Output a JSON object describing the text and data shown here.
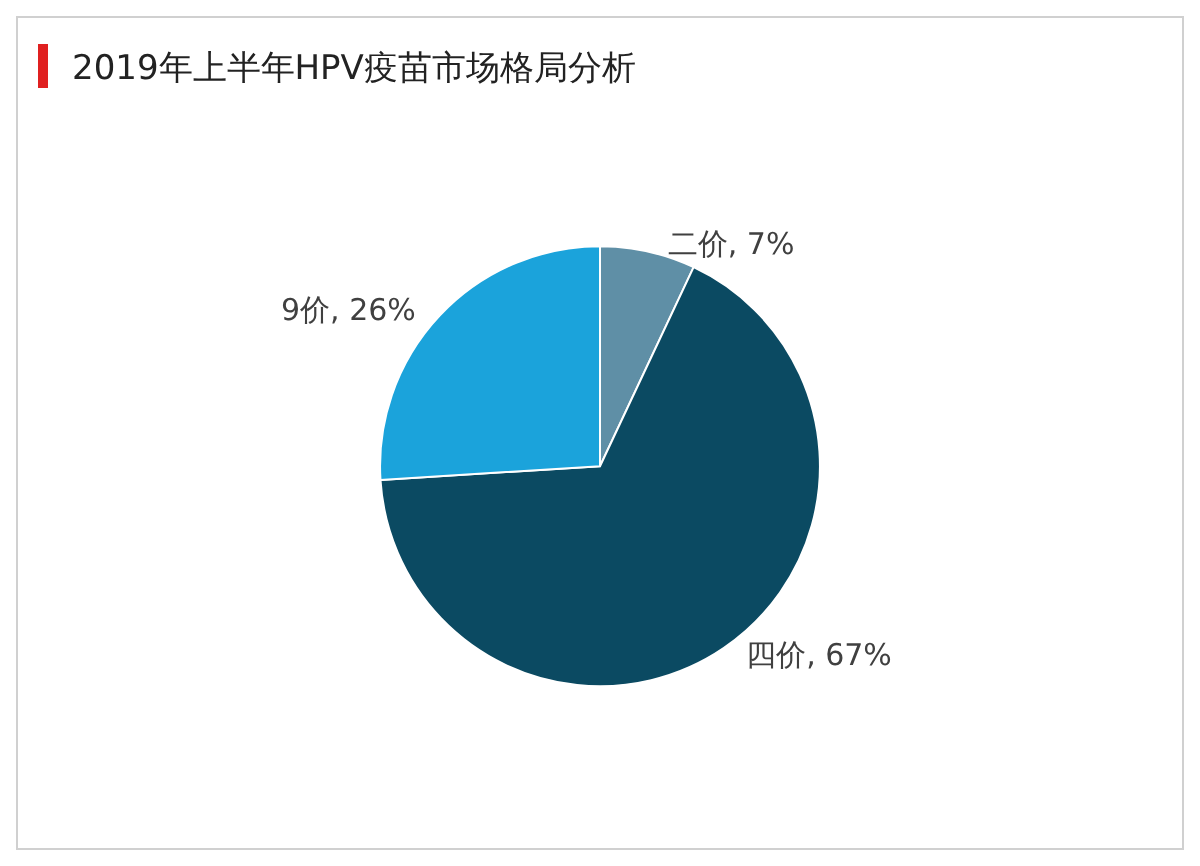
{
  "chart_data": {
    "type": "pie",
    "title": "2019年上半年HPV疫苗市场格局分析",
    "categories": [
      "二价",
      "四价",
      "9价"
    ],
    "values": [
      7,
      67,
      26
    ],
    "colors": [
      "#5f8fa6",
      "#0b4a62",
      "#1ba3db"
    ],
    "value_labels": [
      "7%",
      "67%",
      "26%"
    ]
  }
}
